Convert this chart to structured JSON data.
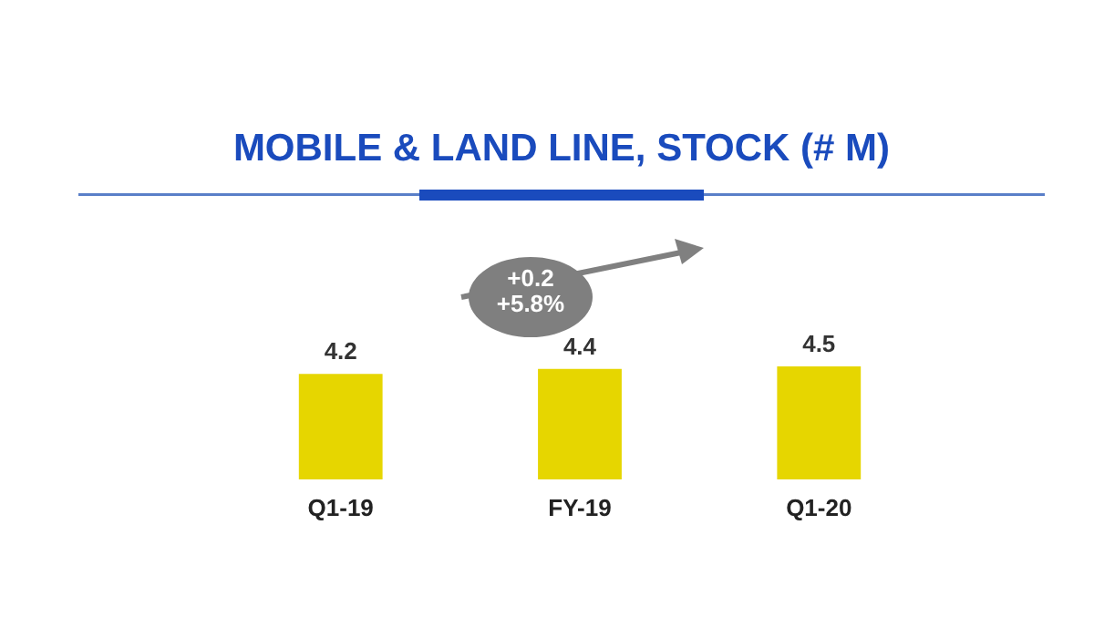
{
  "chart_data": {
    "type": "bar",
    "title": "MOBILE & LAND LINE, STOCK (# M)",
    "categories": [
      "Q1-19",
      "FY-19",
      "Q1-20"
    ],
    "values": [
      4.2,
      4.4,
      4.5
    ],
    "color": "#e6d600",
    "data_labels": true,
    "annotations": [
      "+0.2\n+5.8%"
    ]
  }
}
